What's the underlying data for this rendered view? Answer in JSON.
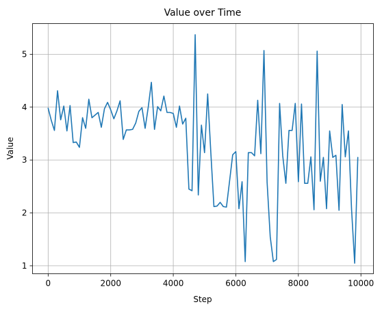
{
  "chart_data": {
    "type": "line",
    "title": "Value over Time",
    "xlabel": "Step",
    "ylabel": "Value",
    "xlim": [
      -500,
      10400
    ],
    "ylim": [
      0.85,
      5.58
    ],
    "xticks": [
      0,
      2000,
      4000,
      6000,
      8000,
      10000
    ],
    "yticks": [
      1,
      2,
      3,
      4,
      5
    ],
    "grid": true,
    "legend": "none",
    "series": [
      {
        "color": "#1f77b4",
        "x": [
          0,
          100,
          200,
          300,
          400,
          500,
          600,
          700,
          800,
          900,
          1000,
          1100,
          1200,
          1300,
          1400,
          1500,
          1600,
          1700,
          1800,
          1900,
          2000,
          2100,
          2200,
          2300,
          2400,
          2500,
          2600,
          2700,
          2800,
          2900,
          3000,
          3100,
          3200,
          3300,
          3400,
          3500,
          3600,
          3700,
          3800,
          3900,
          4000,
          4100,
          4200,
          4300,
          4400,
          4500,
          4600,
          4700,
          4800,
          4900,
          5000,
          5100,
          5200,
          5300,
          5400,
          5500,
          5600,
          5700,
          5800,
          5900,
          6000,
          6100,
          6200,
          6300,
          6400,
          6500,
          6600,
          6700,
          6800,
          6900,
          7000,
          7100,
          7200,
          7300,
          7400,
          7500,
          7600,
          7700,
          7800,
          7900,
          8000,
          8100,
          8200,
          8300,
          8400,
          8500,
          8600,
          8700,
          8800,
          8900,
          9000,
          9100,
          9200,
          9300,
          9400,
          9500,
          9600,
          9700,
          9800,
          9900
        ],
        "y": [
          3.98,
          3.75,
          3.56,
          4.31,
          3.76,
          4.02,
          3.55,
          4.03,
          3.33,
          3.34,
          3.24,
          3.8,
          3.6,
          4.15,
          3.8,
          3.85,
          3.9,
          3.62,
          3.97,
          4.09,
          3.95,
          3.78,
          3.93,
          4.12,
          3.39,
          3.57,
          3.57,
          3.58,
          3.7,
          3.92,
          3.99,
          3.6,
          4.0,
          4.47,
          3.58,
          4.01,
          3.93,
          4.21,
          3.9,
          3.9,
          3.88,
          3.62,
          4.02,
          3.68,
          3.79,
          2.45,
          2.42,
          5.37,
          2.34,
          3.66,
          3.14,
          4.25,
          3.15,
          2.12,
          2.13,
          2.2,
          2.12,
          2.11,
          2.6,
          3.1,
          3.16,
          2.08,
          2.59,
          1.08,
          3.14,
          3.14,
          3.08,
          4.13,
          3.12,
          5.07,
          2.58,
          1.55,
          1.08,
          1.12,
          4.07,
          3.08,
          2.56,
          3.56,
          3.56,
          4.07,
          2.59,
          4.06,
          2.56,
          2.56,
          3.06,
          2.06,
          5.06,
          2.6,
          3.05,
          2.08,
          3.55,
          3.05,
          3.09,
          2.05,
          4.05,
          3.06,
          3.55,
          2.07,
          1.05,
          3.05
        ]
      }
    ]
  }
}
